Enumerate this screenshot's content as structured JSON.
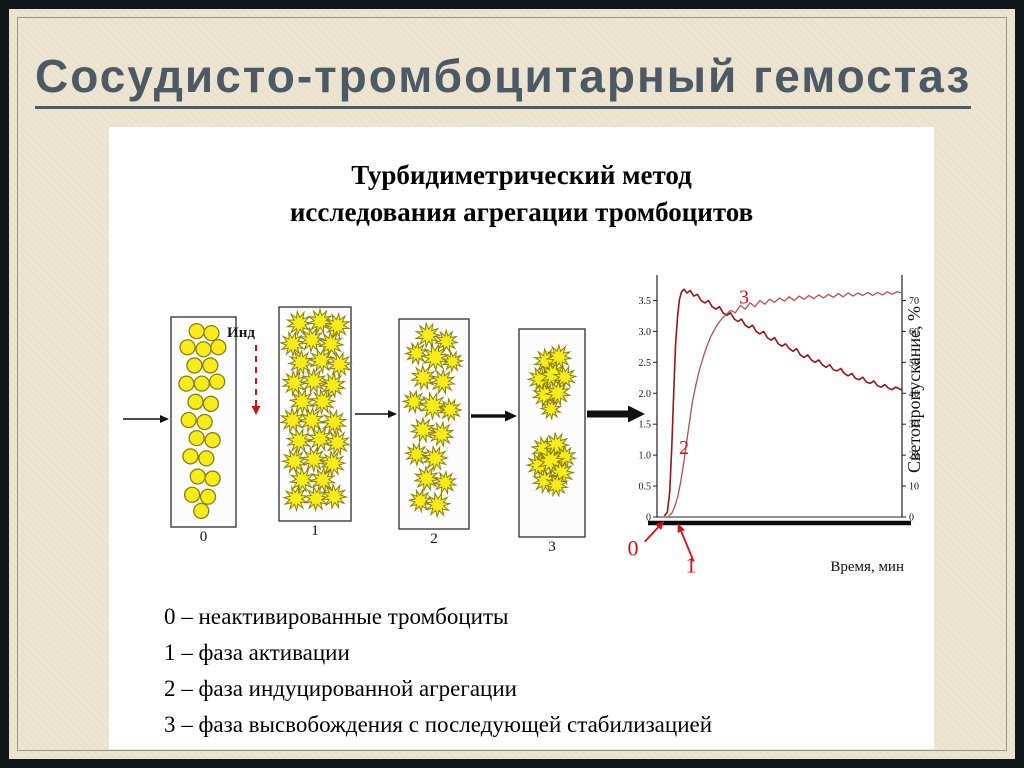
{
  "slide": {
    "title": "Сосудисто-тромбоцитарный гемостаз"
  },
  "figure": {
    "title_line1": "Турбидиметрический метод",
    "title_line2": "исследования агрегации тромбоцитов",
    "inducer_label": "Инд",
    "particle_color": "#f6ec1c",
    "particle_stroke": "#8a7f0a",
    "cuvettes": [
      {
        "label": "0",
        "particle_type": "circle",
        "particles": [
          [
            38,
            5
          ],
          [
            64,
            6
          ],
          [
            22,
            13
          ],
          [
            50,
            14
          ],
          [
            76,
            13
          ],
          [
            34,
            22
          ],
          [
            62,
            22
          ],
          [
            20,
            31
          ],
          [
            47,
            31
          ],
          [
            74,
            30
          ],
          [
            36,
            40
          ],
          [
            63,
            41
          ],
          [
            24,
            49
          ],
          [
            52,
            50
          ],
          [
            38,
            58
          ],
          [
            66,
            59
          ],
          [
            27,
            67
          ],
          [
            55,
            68
          ],
          [
            40,
            77
          ],
          [
            66,
            78
          ],
          [
            30,
            86
          ],
          [
            58,
            87
          ],
          [
            46,
            94
          ]
        ]
      },
      {
        "label": "1",
        "particle_type": "star",
        "particles": [
          [
            25,
            6
          ],
          [
            58,
            5
          ],
          [
            85,
            7
          ],
          [
            15,
            16
          ],
          [
            45,
            14
          ],
          [
            75,
            16
          ],
          [
            28,
            25
          ],
          [
            60,
            24
          ],
          [
            88,
            26
          ],
          [
            18,
            35
          ],
          [
            48,
            34
          ],
          [
            78,
            36
          ],
          [
            30,
            44
          ],
          [
            62,
            44
          ],
          [
            15,
            53
          ],
          [
            45,
            53
          ],
          [
            80,
            54
          ],
          [
            25,
            63
          ],
          [
            58,
            62
          ],
          [
            85,
            64
          ],
          [
            18,
            73
          ],
          [
            48,
            72
          ],
          [
            78,
            74
          ],
          [
            30,
            82
          ],
          [
            62,
            82
          ],
          [
            20,
            91
          ],
          [
            52,
            91
          ],
          [
            80,
            90
          ]
        ]
      },
      {
        "label": "2",
        "particle_type": "star",
        "particles": [
          [
            40,
            6,
            12
          ],
          [
            70,
            9,
            11
          ],
          [
            22,
            15,
            11
          ],
          [
            52,
            17,
            13
          ],
          [
            80,
            19,
            10
          ],
          [
            33,
            27,
            12
          ],
          [
            64,
            29,
            12
          ],
          [
            18,
            39,
            11
          ],
          [
            48,
            41,
            13
          ],
          [
            76,
            43,
            11
          ],
          [
            32,
            53,
            12
          ],
          [
            62,
            55,
            12
          ],
          [
            22,
            65,
            11
          ],
          [
            52,
            67,
            12
          ],
          [
            38,
            77,
            12
          ],
          [
            68,
            79,
            11
          ],
          [
            28,
            88,
            11
          ],
          [
            56,
            90,
            12
          ]
        ]
      },
      {
        "label": "3",
        "particle_type": "star",
        "particles": [
          [
            40,
            14,
            12
          ],
          [
            62,
            12,
            12
          ],
          [
            30,
            23,
            12
          ],
          [
            52,
            21,
            13
          ],
          [
            72,
            22,
            11
          ],
          [
            38,
            31,
            12
          ],
          [
            60,
            30,
            12
          ],
          [
            48,
            38,
            10
          ],
          [
            36,
            58,
            12
          ],
          [
            58,
            56,
            12
          ],
          [
            72,
            62,
            11
          ],
          [
            28,
            66,
            12
          ],
          [
            48,
            64,
            13
          ],
          [
            66,
            70,
            12
          ],
          [
            38,
            74,
            12
          ],
          [
            58,
            76,
            11
          ]
        ]
      }
    ]
  },
  "legend": {
    "items": [
      "0 – неактивированные тромбоциты",
      "1 – фаза активации",
      "2 – фаза индуцированной агрегации",
      "3 – фаза высвобождения с последующей стабилизацией"
    ]
  },
  "chart_data": {
    "type": "line",
    "xlabel": "Время, мин",
    "ylabel_right": "Светопропускание, %",
    "left_axis_ticks": [
      "3.5",
      "3.0",
      "2.5",
      "2.0",
      "1.5",
      "1.0",
      "0.5",
      "0"
    ],
    "right_axis_ticks": [
      "70",
      "60",
      "50",
      "40",
      "30",
      "20",
      "10",
      "0"
    ],
    "left_axis_max": 3.75,
    "right_axis_max": 75,
    "annotation_color": "#cc1414",
    "series": [
      {
        "name": "curve-optical-density",
        "color": "#8c1a1c",
        "width": 1.6,
        "points": [
          [
            0.03,
            0.02
          ],
          [
            0.042,
            0.08
          ],
          [
            0.052,
            0.4
          ],
          [
            0.06,
            1.1
          ],
          [
            0.068,
            2.0
          ],
          [
            0.076,
            2.8
          ],
          [
            0.084,
            3.25
          ],
          [
            0.092,
            3.52
          ],
          [
            0.1,
            3.64
          ],
          [
            0.11,
            3.68
          ],
          [
            0.122,
            3.62
          ],
          [
            0.135,
            3.66
          ],
          [
            0.15,
            3.57
          ],
          [
            0.165,
            3.6
          ],
          [
            0.18,
            3.5
          ],
          [
            0.195,
            3.46
          ],
          [
            0.21,
            3.5
          ],
          [
            0.225,
            3.4
          ],
          [
            0.24,
            3.36
          ],
          [
            0.255,
            3.4
          ],
          [
            0.27,
            3.3
          ],
          [
            0.285,
            3.26
          ],
          [
            0.3,
            3.3
          ],
          [
            0.315,
            3.2
          ],
          [
            0.33,
            3.16
          ],
          [
            0.345,
            3.2
          ],
          [
            0.36,
            3.1
          ],
          [
            0.375,
            3.06
          ],
          [
            0.39,
            3.1
          ],
          [
            0.405,
            3.0
          ],
          [
            0.42,
            2.96
          ],
          [
            0.435,
            3.0
          ],
          [
            0.45,
            2.9
          ],
          [
            0.465,
            2.86
          ],
          [
            0.48,
            2.9
          ],
          [
            0.495,
            2.8
          ],
          [
            0.51,
            2.76
          ],
          [
            0.525,
            2.8
          ],
          [
            0.54,
            2.72
          ],
          [
            0.555,
            2.68
          ],
          [
            0.57,
            2.72
          ],
          [
            0.585,
            2.62
          ],
          [
            0.6,
            2.58
          ],
          [
            0.615,
            2.62
          ],
          [
            0.63,
            2.54
          ],
          [
            0.645,
            2.5
          ],
          [
            0.66,
            2.54
          ],
          [
            0.675,
            2.46
          ],
          [
            0.69,
            2.42
          ],
          [
            0.705,
            2.46
          ],
          [
            0.72,
            2.38
          ],
          [
            0.735,
            2.36
          ],
          [
            0.75,
            2.4
          ],
          [
            0.765,
            2.32
          ],
          [
            0.78,
            2.28
          ],
          [
            0.795,
            2.32
          ],
          [
            0.81,
            2.24
          ],
          [
            0.825,
            2.22
          ],
          [
            0.84,
            2.26
          ],
          [
            0.855,
            2.18
          ],
          [
            0.87,
            2.16
          ],
          [
            0.885,
            2.2
          ],
          [
            0.9,
            2.12
          ],
          [
            0.915,
            2.1
          ],
          [
            0.93,
            2.14
          ],
          [
            0.945,
            2.08
          ],
          [
            0.96,
            2.06
          ],
          [
            0.975,
            2.1
          ],
          [
            1.0,
            2.05
          ]
        ]
      },
      {
        "name": "curve-light-transmission",
        "color": "#b25052",
        "width": 1.3,
        "points": [
          [
            0.048,
            0.02
          ],
          [
            0.06,
            0.06
          ],
          [
            0.072,
            0.16
          ],
          [
            0.084,
            0.32
          ],
          [
            0.096,
            0.55
          ],
          [
            0.108,
            0.85
          ],
          [
            0.12,
            1.18
          ],
          [
            0.132,
            1.52
          ],
          [
            0.144,
            1.85
          ],
          [
            0.158,
            2.12
          ],
          [
            0.172,
            2.36
          ],
          [
            0.188,
            2.58
          ],
          [
            0.204,
            2.76
          ],
          [
            0.22,
            2.92
          ],
          [
            0.236,
            3.04
          ],
          [
            0.252,
            3.14
          ],
          [
            0.268,
            3.22
          ],
          [
            0.284,
            3.28
          ],
          [
            0.3,
            3.34
          ],
          [
            0.32,
            3.3
          ],
          [
            0.34,
            3.42
          ],
          [
            0.36,
            3.36
          ],
          [
            0.38,
            3.46
          ],
          [
            0.4,
            3.4
          ],
          [
            0.42,
            3.5
          ],
          [
            0.44,
            3.44
          ],
          [
            0.46,
            3.52
          ],
          [
            0.48,
            3.47
          ],
          [
            0.5,
            3.54
          ],
          [
            0.52,
            3.49
          ],
          [
            0.54,
            3.56
          ],
          [
            0.56,
            3.5
          ],
          [
            0.58,
            3.57
          ],
          [
            0.6,
            3.52
          ],
          [
            0.62,
            3.58
          ],
          [
            0.64,
            3.53
          ],
          [
            0.66,
            3.59
          ],
          [
            0.68,
            3.54
          ],
          [
            0.7,
            3.6
          ],
          [
            0.72,
            3.55
          ],
          [
            0.74,
            3.61
          ],
          [
            0.76,
            3.56
          ],
          [
            0.78,
            3.62
          ],
          [
            0.8,
            3.57
          ],
          [
            0.82,
            3.62
          ],
          [
            0.84,
            3.58
          ],
          [
            0.86,
            3.63
          ],
          [
            0.88,
            3.58
          ],
          [
            0.9,
            3.63
          ],
          [
            0.92,
            3.59
          ],
          [
            0.94,
            3.64
          ],
          [
            0.96,
            3.6
          ],
          [
            0.98,
            3.64
          ],
          [
            1.0,
            3.62
          ]
        ]
      }
    ],
    "annotations": [
      {
        "label": "3",
        "x": 0.355,
        "y": 3.45,
        "size": 20
      },
      {
        "label": "2",
        "x": 0.11,
        "y": 1.02,
        "size": 20
      },
      {
        "label": "0",
        "x": -0.098,
        "y": -0.62,
        "size": 22,
        "arrow_from": [
          -0.05,
          -0.4
        ],
        "arrow_to": [
          0.03,
          -0.06
        ]
      },
      {
        "label": "1",
        "x": 0.139,
        "y": -0.9,
        "size": 22,
        "arrow_from": [
          0.15,
          -0.72
        ],
        "arrow_to": [
          0.085,
          -0.1
        ]
      }
    ]
  }
}
